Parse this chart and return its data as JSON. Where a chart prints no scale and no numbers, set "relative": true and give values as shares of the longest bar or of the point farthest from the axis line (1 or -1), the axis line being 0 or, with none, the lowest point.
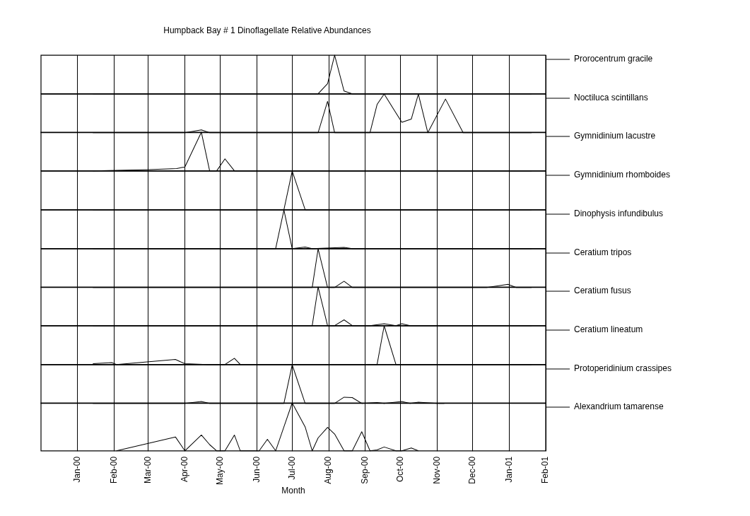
{
  "chart_data": [
    {
      "type": "line",
      "title": "Humpback Bay # 1 Dinoflagellate Relative Abundances",
      "relative": true,
      "grid": true,
      "legend": "right",
      "marker": "none",
      "line_style": "solid",
      "tick_labels": false,
      "xlim": [
        "1999-12-01",
        "2001-02-01"
      ],
      "xticks": [
        {
          "value": "2000-01-01",
          "label": null
        },
        {
          "value": "2000-02-01",
          "label": null
        },
        {
          "value": "2000-03-01",
          "label": null
        },
        {
          "value": "2000-04-01",
          "label": null
        },
        {
          "value": "2000-05-01",
          "label": null
        },
        {
          "value": "2000-06-01",
          "label": null
        },
        {
          "value": "2000-07-01",
          "label": null
        },
        {
          "value": "2000-08-01",
          "label": null
        },
        {
          "value": "2000-09-01",
          "label": null
        },
        {
          "value": "2000-10-01",
          "label": null
        },
        {
          "value": "2000-11-01",
          "label": null
        },
        {
          "value": "2000-12-01",
          "label": null
        },
        {
          "value": "2001-01-01",
          "label": null
        },
        {
          "value": "2001-02-01",
          "label": null
        }
      ],
      "series": [
        {
          "name": "Prorocentrum gracile",
          "color": "#000000",
          "x": [
            "2000-01-14",
            "2000-07-23",
            "2000-07-31",
            "2000-08-06",
            "2000-08-14",
            "2000-08-21",
            "2001-01-20"
          ],
          "values": [
            0,
            0,
            0.26,
            1,
            0.07,
            0,
            0
          ]
        }
      ]
    },
    {
      "type": "line",
      "relative": true,
      "grid": true,
      "legend": "right",
      "marker": "none",
      "line_style": "solid",
      "tick_labels": false,
      "xlim": [
        "1999-12-01",
        "2001-02-01"
      ],
      "xticks": [
        {
          "value": "2000-01-01",
          "label": null
        },
        {
          "value": "2000-02-01",
          "label": null
        },
        {
          "value": "2000-03-01",
          "label": null
        },
        {
          "value": "2000-04-01",
          "label": null
        },
        {
          "value": "2000-05-01",
          "label": null
        },
        {
          "value": "2000-06-01",
          "label": null
        },
        {
          "value": "2000-07-01",
          "label": null
        },
        {
          "value": "2000-08-01",
          "label": null
        },
        {
          "value": "2000-09-01",
          "label": null
        },
        {
          "value": "2000-10-01",
          "label": null
        },
        {
          "value": "2000-11-01",
          "label": null
        },
        {
          "value": "2000-12-01",
          "label": null
        },
        {
          "value": "2001-01-01",
          "label": null
        },
        {
          "value": "2001-02-01",
          "label": null
        }
      ],
      "series": [
        {
          "name": "Noctiluca scintillans",
          "color": "#000000",
          "x": [
            "2000-01-14",
            "2000-04-01",
            "2000-04-15",
            "2000-04-22",
            "2000-07-23",
            "2000-07-31",
            "2000-08-06",
            "2000-09-05",
            "2000-09-11",
            "2000-09-17",
            "2000-09-27",
            "2000-10-02",
            "2000-10-10",
            "2000-10-16",
            "2000-10-24",
            "2000-11-08",
            "2000-11-23",
            "2001-01-20"
          ],
          "values": [
            0,
            0,
            0.07,
            0,
            0,
            0.81,
            0,
            0,
            0.73,
            1,
            0.51,
            0.27,
            0.35,
            1,
            0,
            0.87,
            0,
            0
          ]
        }
      ]
    },
    {
      "type": "line",
      "relative": true,
      "grid": true,
      "legend": "right",
      "marker": "none",
      "line_style": "solid",
      "tick_labels": false,
      "xlim": [
        "1999-12-01",
        "2001-02-01"
      ],
      "xticks": [
        {
          "value": "2000-01-01",
          "label": null
        },
        {
          "value": "2000-02-01",
          "label": null
        },
        {
          "value": "2000-03-01",
          "label": null
        },
        {
          "value": "2000-04-01",
          "label": null
        },
        {
          "value": "2000-05-01",
          "label": null
        },
        {
          "value": "2000-06-01",
          "label": null
        },
        {
          "value": "2000-07-01",
          "label": null
        },
        {
          "value": "2000-08-01",
          "label": null
        },
        {
          "value": "2000-09-01",
          "label": null
        },
        {
          "value": "2000-10-01",
          "label": null
        },
        {
          "value": "2000-11-01",
          "label": null
        },
        {
          "value": "2000-12-01",
          "label": null
        },
        {
          "value": "2001-01-01",
          "label": null
        },
        {
          "value": "2001-02-01",
          "label": null
        }
      ],
      "series": [
        {
          "name": "Gymnidinium lacustre",
          "color": "#000000",
          "x": [
            "2000-01-14",
            "2000-03-01",
            "2000-03-25",
            "2000-04-01",
            "2000-04-15",
            "2000-04-22",
            "2000-04-28",
            "2000-05-05",
            "2000-05-13",
            "2001-01-20"
          ],
          "values": [
            0,
            0.03,
            0.06,
            0.1,
            1,
            0,
            0,
            0.31,
            0,
            0
          ]
        }
      ]
    },
    {
      "type": "line",
      "relative": true,
      "grid": true,
      "legend": "right",
      "marker": "none",
      "line_style": "solid",
      "tick_labels": false,
      "xlim": [
        "1999-12-01",
        "2001-02-01"
      ],
      "xticks": [
        {
          "value": "2000-01-01",
          "label": null
        },
        {
          "value": "2000-02-01",
          "label": null
        },
        {
          "value": "2000-03-01",
          "label": null
        },
        {
          "value": "2000-04-01",
          "label": null
        },
        {
          "value": "2000-05-01",
          "label": null
        },
        {
          "value": "2000-06-01",
          "label": null
        },
        {
          "value": "2000-07-01",
          "label": null
        },
        {
          "value": "2000-08-01",
          "label": null
        },
        {
          "value": "2000-09-01",
          "label": null
        },
        {
          "value": "2000-10-01",
          "label": null
        },
        {
          "value": "2000-11-01",
          "label": null
        },
        {
          "value": "2000-12-01",
          "label": null
        },
        {
          "value": "2001-01-01",
          "label": null
        },
        {
          "value": "2001-02-01",
          "label": null
        }
      ],
      "series": [
        {
          "name": "Gymnidinium rhomboides",
          "color": "#000000",
          "x": [
            "2000-01-14",
            "2000-06-24",
            "2000-07-01",
            "2000-07-12",
            "2001-01-20"
          ],
          "values": [
            0,
            0,
            1,
            0,
            0
          ]
        }
      ]
    },
    {
      "type": "line",
      "relative": true,
      "grid": true,
      "legend": "right",
      "marker": "none",
      "line_style": "solid",
      "tick_labels": false,
      "xlim": [
        "1999-12-01",
        "2001-02-01"
      ],
      "xticks": [
        {
          "value": "2000-01-01",
          "label": null
        },
        {
          "value": "2000-02-01",
          "label": null
        },
        {
          "value": "2000-03-01",
          "label": null
        },
        {
          "value": "2000-04-01",
          "label": null
        },
        {
          "value": "2000-05-01",
          "label": null
        },
        {
          "value": "2000-06-01",
          "label": null
        },
        {
          "value": "2000-07-01",
          "label": null
        },
        {
          "value": "2000-08-01",
          "label": null
        },
        {
          "value": "2000-09-01",
          "label": null
        },
        {
          "value": "2000-10-01",
          "label": null
        },
        {
          "value": "2000-11-01",
          "label": null
        },
        {
          "value": "2000-12-01",
          "label": null
        },
        {
          "value": "2001-01-01",
          "label": null
        },
        {
          "value": "2001-02-01",
          "label": null
        }
      ],
      "series": [
        {
          "name": "Dinophysis infundibulus",
          "color": "#000000",
          "x": [
            "2000-01-14",
            "2000-06-17",
            "2000-06-24",
            "2000-07-01",
            "2000-07-12",
            "2000-07-18",
            "2000-08-14",
            "2000-08-21",
            "2001-01-20"
          ],
          "values": [
            0,
            0,
            1,
            0,
            0.04,
            0,
            0.03,
            0,
            0
          ]
        }
      ]
    },
    {
      "type": "line",
      "relative": true,
      "grid": true,
      "legend": "right",
      "marker": "none",
      "line_style": "solid",
      "tick_labels": false,
      "xlim": [
        "1999-12-01",
        "2001-02-01"
      ],
      "xticks": [
        {
          "value": "2000-01-01",
          "label": null
        },
        {
          "value": "2000-02-01",
          "label": null
        },
        {
          "value": "2000-03-01",
          "label": null
        },
        {
          "value": "2000-04-01",
          "label": null
        },
        {
          "value": "2000-05-01",
          "label": null
        },
        {
          "value": "2000-06-01",
          "label": null
        },
        {
          "value": "2000-07-01",
          "label": null
        },
        {
          "value": "2000-08-01",
          "label": null
        },
        {
          "value": "2000-09-01",
          "label": null
        },
        {
          "value": "2000-10-01",
          "label": null
        },
        {
          "value": "2000-11-01",
          "label": null
        },
        {
          "value": "2000-12-01",
          "label": null
        },
        {
          "value": "2001-01-01",
          "label": null
        },
        {
          "value": "2001-02-01",
          "label": null
        }
      ],
      "series": [
        {
          "name": "Ceratium tripos",
          "color": "#000000",
          "x": [
            "2000-01-14",
            "2000-07-18",
            "2000-07-23",
            "2000-07-31",
            "2000-08-06",
            "2000-08-14",
            "2000-08-21",
            "2000-12-13",
            "2000-12-31",
            "2001-01-07",
            "2001-01-20"
          ],
          "values": [
            0,
            0,
            1,
            0,
            0,
            0.16,
            0,
            0,
            0.08,
            0,
            0
          ]
        }
      ]
    },
    {
      "type": "line",
      "relative": true,
      "grid": true,
      "legend": "right",
      "marker": "none",
      "line_style": "solid",
      "tick_labels": false,
      "xlim": [
        "1999-12-01",
        "2001-02-01"
      ],
      "xticks": [
        {
          "value": "2000-01-01",
          "label": null
        },
        {
          "value": "2000-02-01",
          "label": null
        },
        {
          "value": "2000-03-01",
          "label": null
        },
        {
          "value": "2000-04-01",
          "label": null
        },
        {
          "value": "2000-05-01",
          "label": null
        },
        {
          "value": "2000-06-01",
          "label": null
        },
        {
          "value": "2000-07-01",
          "label": null
        },
        {
          "value": "2000-08-01",
          "label": null
        },
        {
          "value": "2000-09-01",
          "label": null
        },
        {
          "value": "2000-10-01",
          "label": null
        },
        {
          "value": "2000-11-01",
          "label": null
        },
        {
          "value": "2000-12-01",
          "label": null
        },
        {
          "value": "2001-01-01",
          "label": null
        },
        {
          "value": "2001-02-01",
          "label": null
        }
      ],
      "series": [
        {
          "name": "Ceratium fusus",
          "color": "#000000",
          "x": [
            "2000-01-14",
            "2000-07-18",
            "2000-07-23",
            "2000-07-31",
            "2000-08-06",
            "2000-08-14",
            "2000-08-21",
            "2000-09-05",
            "2000-09-17",
            "2000-09-27",
            "2000-10-02",
            "2000-10-09",
            "2001-01-20"
          ],
          "values": [
            0,
            0,
            1,
            0,
            0,
            0.15,
            0,
            0,
            0.05,
            0,
            0.05,
            0,
            0
          ]
        }
      ]
    },
    {
      "type": "line",
      "relative": true,
      "grid": true,
      "legend": "right",
      "marker": "none",
      "line_style": "solid",
      "tick_labels": false,
      "xlim": [
        "1999-12-01",
        "2001-02-01"
      ],
      "xticks": [
        {
          "value": "2000-01-01",
          "label": null
        },
        {
          "value": "2000-02-01",
          "label": null
        },
        {
          "value": "2000-03-01",
          "label": null
        },
        {
          "value": "2000-04-01",
          "label": null
        },
        {
          "value": "2000-05-01",
          "label": null
        },
        {
          "value": "2000-06-01",
          "label": null
        },
        {
          "value": "2000-07-01",
          "label": null
        },
        {
          "value": "2000-08-01",
          "label": null
        },
        {
          "value": "2000-09-01",
          "label": null
        },
        {
          "value": "2000-10-01",
          "label": null
        },
        {
          "value": "2000-11-01",
          "label": null
        },
        {
          "value": "2000-12-01",
          "label": null
        },
        {
          "value": "2001-01-01",
          "label": null
        },
        {
          "value": "2001-02-01",
          "label": null
        }
      ],
      "series": [
        {
          "name": "Ceratium lineatum",
          "color": "#000000",
          "x": [
            "2000-01-14",
            "2000-01-30",
            "2000-02-03",
            "2000-03-24",
            "2000-04-01",
            "2000-04-20",
            "2000-05-05",
            "2000-05-13",
            "2000-05-18",
            "2000-09-11",
            "2000-09-17",
            "2000-09-27",
            "2001-01-20"
          ],
          "values": [
            0.02,
            0.05,
            0,
            0.13,
            0.02,
            0,
            0,
            0.16,
            0,
            0,
            1,
            0,
            0
          ]
        }
      ]
    },
    {
      "type": "line",
      "relative": true,
      "grid": true,
      "legend": "right",
      "marker": "none",
      "line_style": "solid",
      "tick_labels": false,
      "xlim": [
        "1999-12-01",
        "2001-02-01"
      ],
      "xticks": [
        {
          "value": "2000-01-01",
          "label": null
        },
        {
          "value": "2000-02-01",
          "label": null
        },
        {
          "value": "2000-03-01",
          "label": null
        },
        {
          "value": "2000-04-01",
          "label": null
        },
        {
          "value": "2000-05-01",
          "label": null
        },
        {
          "value": "2000-06-01",
          "label": null
        },
        {
          "value": "2000-07-01",
          "label": null
        },
        {
          "value": "2000-08-01",
          "label": null
        },
        {
          "value": "2000-09-01",
          "label": null
        },
        {
          "value": "2000-10-01",
          "label": null
        },
        {
          "value": "2000-11-01",
          "label": null
        },
        {
          "value": "2000-12-01",
          "label": null
        },
        {
          "value": "2001-01-01",
          "label": null
        },
        {
          "value": "2001-02-01",
          "label": null
        }
      ],
      "series": [
        {
          "name": "Protoperidinium crassipes",
          "color": "#000000",
          "x": [
            "2000-01-14",
            "2000-04-01",
            "2000-04-15",
            "2000-04-22",
            "2000-06-24",
            "2000-07-01",
            "2000-07-12",
            "2000-08-06",
            "2000-08-14",
            "2000-08-21",
            "2000-08-29",
            "2000-09-11",
            "2000-09-17",
            "2000-10-02",
            "2000-10-09",
            "2000-10-16",
            "2000-11-01",
            "2000-11-07"
          ],
          "values": [
            0,
            0,
            0.05,
            0,
            0,
            1,
            0,
            0,
            0.16,
            0.15,
            0,
            0.02,
            0,
            0.05,
            0,
            0.03,
            0,
            0
          ]
        }
      ]
    },
    {
      "type": "line",
      "xlabel": "Month",
      "relative": true,
      "grid": true,
      "legend": "right",
      "marker": "none",
      "line_style": "solid",
      "tick_labels": "x",
      "xlim": [
        "1999-12-01",
        "2001-02-01"
      ],
      "xticks": [
        {
          "value": "2000-01-01",
          "label": "Jan-00"
        },
        {
          "value": "2000-02-01",
          "label": "Feb-00"
        },
        {
          "value": "2000-03-01",
          "label": "Mar-00"
        },
        {
          "value": "2000-04-01",
          "label": "Apr-00"
        },
        {
          "value": "2000-05-01",
          "label": "May-00"
        },
        {
          "value": "2000-06-01",
          "label": "Jun-00"
        },
        {
          "value": "2000-07-01",
          "label": "Jul-00"
        },
        {
          "value": "2000-08-01",
          "label": "Aug-00"
        },
        {
          "value": "2000-09-01",
          "label": "Sep-00"
        },
        {
          "value": "2000-10-01",
          "label": "Oct-00"
        },
        {
          "value": "2000-11-01",
          "label": "Nov-00"
        },
        {
          "value": "2000-12-01",
          "label": "Dec-00"
        },
        {
          "value": "2001-01-01",
          "label": "Jan-01"
        },
        {
          "value": "2001-02-01",
          "label": "Feb-01"
        }
      ],
      "series": [
        {
          "name": "Alexandrium tamarense",
          "color": "#000000",
          "x": [
            "2000-02-03",
            "2000-03-24",
            "2000-04-01",
            "2000-04-15",
            "2000-04-22",
            "2000-04-28",
            "2000-05-05",
            "2000-05-13",
            "2000-05-18",
            "2000-06-03",
            "2000-06-10",
            "2000-06-17",
            "2000-06-24",
            "2000-07-01",
            "2000-07-12",
            "2000-07-18",
            "2000-07-23",
            "2000-07-31",
            "2000-08-06",
            "2000-08-14",
            "2000-08-21",
            "2000-08-29",
            "2000-09-05",
            "2000-09-11",
            "2000-09-17",
            "2000-09-27",
            "2000-10-02",
            "2000-10-10",
            "2000-10-16"
          ],
          "values": [
            0,
            0.29,
            0,
            0.33,
            0.13,
            0,
            0,
            0.33,
            0,
            0,
            0.24,
            0,
            0.5,
            1,
            0.5,
            0,
            0.27,
            0.49,
            0.35,
            0,
            0,
            0.4,
            0,
            0.02,
            0.08,
            0,
            0,
            0.06,
            0
          ]
        }
      ]
    }
  ]
}
